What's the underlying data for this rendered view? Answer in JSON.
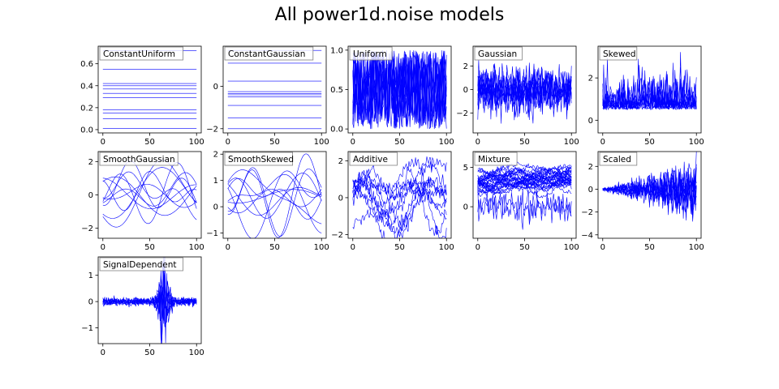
{
  "title": "All power1d.noise models",
  "colors": {
    "line": "#0000ff",
    "axis": "#000000",
    "label_border": "#808080"
  },
  "chart_data": [
    {
      "type": "line",
      "title": "ConstantUniform",
      "model": "const_uniform",
      "xlim": [
        -5,
        105
      ],
      "ylim": [
        -0.03,
        0.76
      ],
      "xticks": [
        0,
        50,
        100
      ],
      "yticks": [
        0.0,
        0.2,
        0.4,
        0.6
      ],
      "ytick_labels": [
        "0.0",
        "0.2",
        "0.4",
        "0.6"
      ],
      "levels": [
        0.72,
        0.55,
        0.42,
        0.4,
        0.37,
        0.33,
        0.29,
        0.18,
        0.15,
        0.1,
        0.01
      ]
    },
    {
      "type": "line",
      "title": "ConstantGaussian",
      "model": "const_gauss",
      "xlim": [
        -5,
        105
      ],
      "ylim": [
        -2.2,
        1.9
      ],
      "xticks": [
        0,
        50,
        100
      ],
      "yticks": [
        -2,
        0
      ],
      "ytick_labels": [
        "−2",
        "0"
      ],
      "levels": [
        1.7,
        1.1,
        0.25,
        -0.25,
        -0.35,
        -0.4,
        -0.5,
        -0.9,
        -1.5,
        -2.0
      ]
    },
    {
      "type": "line",
      "title": "Uniform",
      "model": "uniform",
      "xlim": [
        -5,
        105
      ],
      "ylim": [
        -0.05,
        1.05
      ],
      "xticks": [
        0,
        50,
        100
      ],
      "yticks": [
        0.0,
        0.5,
        1.0
      ],
      "ytick_labels": [
        "0.0",
        "0.5",
        "1.0"
      ],
      "range": [
        0.0,
        1.0
      ]
    },
    {
      "type": "line",
      "title": "Gaussian",
      "model": "gauss",
      "xlim": [
        -5,
        105
      ],
      "ylim": [
        -3.7,
        3.7
      ],
      "xticks": [
        0,
        50,
        100
      ],
      "yticks": [
        -2,
        0,
        2
      ],
      "ytick_labels": [
        "−2",
        "0",
        "2"
      ],
      "mean": 0.0,
      "sd": 0.9
    },
    {
      "type": "line",
      "title": "Skewed",
      "model": "skewed",
      "xlim": [
        -5,
        105
      ],
      "ylim": [
        -0.6,
        3.5
      ],
      "xticks": [
        0,
        50,
        100
      ],
      "yticks": [
        0,
        2
      ],
      "ytick_labels": [
        "0",
        "2"
      ],
      "mean": 0.5,
      "sd": 0.55
    },
    {
      "type": "line",
      "title": "SmoothGaussian",
      "model": "smooth_gauss",
      "xlim": [
        -5,
        105
      ],
      "ylim": [
        -2.6,
        2.6
      ],
      "xticks": [
        0,
        50,
        100
      ],
      "yticks": [
        -2,
        0,
        2
      ],
      "ytick_labels": [
        "−2",
        "0",
        "2"
      ],
      "amplitude": 1.0
    },
    {
      "type": "line",
      "title": "SmoothSkewed",
      "model": "smooth_skewed",
      "xlim": [
        -5,
        105
      ],
      "ylim": [
        -1.2,
        2.1
      ],
      "xticks": [
        0,
        50,
        100
      ],
      "yticks": [
        -1,
        0,
        1,
        2
      ],
      "ytick_labels": [
        "−1",
        "0",
        "1",
        "2"
      ],
      "offset": 0.4,
      "amplitude": 0.7
    },
    {
      "type": "line",
      "title": "Additive",
      "model": "additive",
      "xlim": [
        -5,
        105
      ],
      "ylim": [
        -2.2,
        2.5
      ],
      "xticks": [
        0,
        50,
        100
      ],
      "yticks": [
        -2,
        0,
        2
      ],
      "ytick_labels": [
        "−2",
        "0",
        "2"
      ],
      "amplitude": 1.0
    },
    {
      "type": "line",
      "title": "Mixture",
      "model": "mixture",
      "xlim": [
        -5,
        105
      ],
      "ylim": [
        -4.0,
        7.0
      ],
      "xticks": [
        0,
        50,
        100
      ],
      "yticks": [
        0,
        5
      ],
      "ytick_labels": [
        "0",
        "5"
      ],
      "mean": 3.5,
      "outlier_mean": 0.0
    },
    {
      "type": "line",
      "title": "Scaled",
      "model": "scaled",
      "xlim": [
        -5,
        105
      ],
      "ylim": [
        -4.3,
        3.3
      ],
      "xticks": [
        0,
        50,
        100
      ],
      "yticks": [
        -4,
        -2,
        0,
        2
      ],
      "ytick_labels": [
        "−4",
        "−2",
        "0",
        "2"
      ],
      "amplitude": 1.2
    },
    {
      "type": "line",
      "title": "SignalDependent",
      "model": "signal_dependent",
      "xlim": [
        -5,
        105
      ],
      "ylim": [
        -1.6,
        1.7
      ],
      "xticks": [
        0,
        50,
        100
      ],
      "yticks": [
        -1,
        0,
        1
      ],
      "ytick_labels": [
        "−1",
        "0",
        "1"
      ],
      "peak_x": 65,
      "peak_amplitude": 1.3
    }
  ]
}
